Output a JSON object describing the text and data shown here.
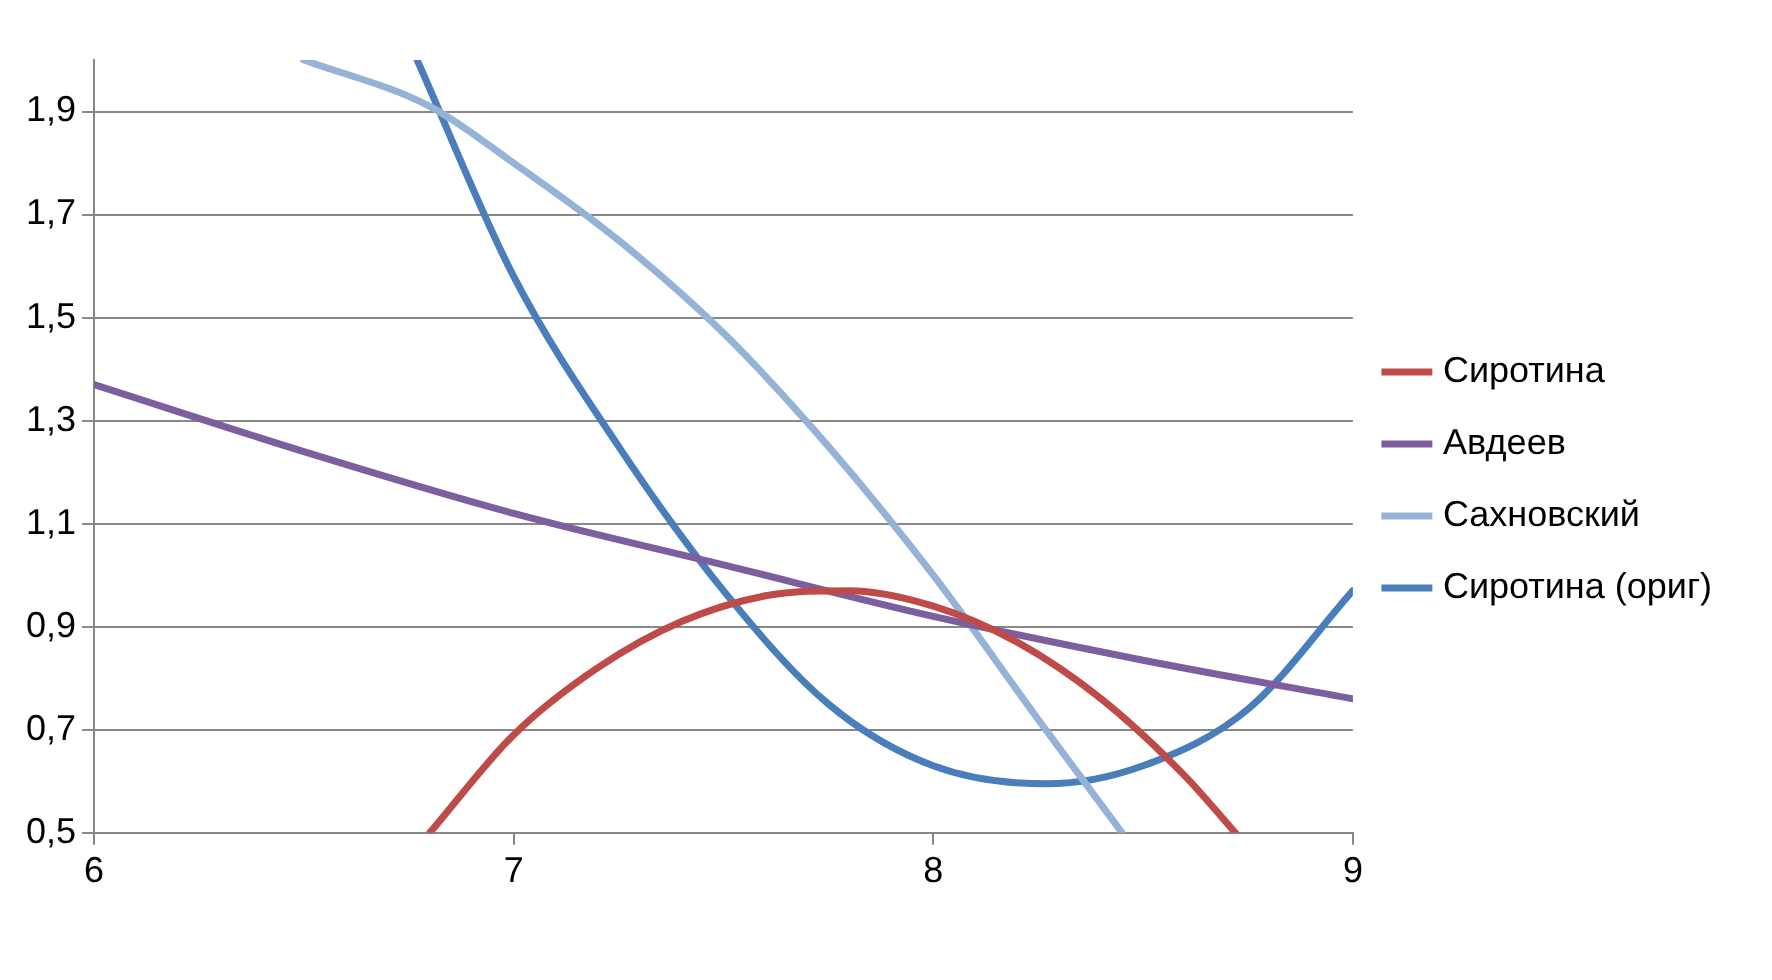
{
  "chart_data": {
    "type": "line",
    "xlim": [
      6,
      9
    ],
    "xticks": [
      6,
      7,
      8,
      9
    ],
    "ylim": [
      0.5,
      2.0
    ],
    "yticks": [
      {
        "value": 0.5,
        "label": "0,5"
      },
      {
        "value": 0.7,
        "label": "0,7"
      },
      {
        "value": 0.9,
        "label": "0,9"
      },
      {
        "value": 1.1,
        "label": "1,1"
      },
      {
        "value": 1.3,
        "label": "1,3"
      },
      {
        "value": 1.5,
        "label": "1,5"
      },
      {
        "value": 1.7,
        "label": "1,7"
      },
      {
        "value": 1.9,
        "label": "1,9"
      }
    ],
    "grid": "y",
    "legend": "right",
    "marker": "none",
    "line_style": "solid",
    "series": [
      {
        "name": "Сиротина",
        "color": "#be4b48",
        "x": [
          6.8,
          7.0,
          7.2,
          7.4,
          7.6,
          7.8,
          8.0,
          8.2,
          8.4,
          8.6,
          8.72
        ],
        "values": [
          0.5,
          0.69,
          0.82,
          0.91,
          0.96,
          0.97,
          0.94,
          0.87,
          0.76,
          0.61,
          0.5
        ]
      },
      {
        "name": "Авдеев",
        "color": "#7d5fa0",
        "x": [
          6,
          6.5,
          7,
          7.5,
          8,
          8.5,
          9
        ],
        "values": [
          1.37,
          1.24,
          1.12,
          1.02,
          0.92,
          0.835,
          0.76
        ]
      },
      {
        "name": "Сахновский",
        "color": "#95b3d7",
        "x": [
          6.5,
          6.8,
          7.0,
          7.25,
          7.5,
          7.75,
          8.0,
          8.25,
          8.45
        ],
        "values": [
          2.0,
          1.91,
          1.8,
          1.65,
          1.47,
          1.25,
          1.0,
          0.72,
          0.5
        ]
      },
      {
        "name": "Сиротина (ориг)",
        "color": "#4a7ebb",
        "x": [
          6.77,
          7.0,
          7.25,
          7.5,
          7.75,
          8.0,
          8.27,
          8.5,
          8.75,
          9.0
        ],
        "values": [
          2.0,
          1.58,
          1.25,
          0.97,
          0.75,
          0.63,
          0.595,
          0.63,
          0.74,
          0.97
        ]
      }
    ]
  }
}
